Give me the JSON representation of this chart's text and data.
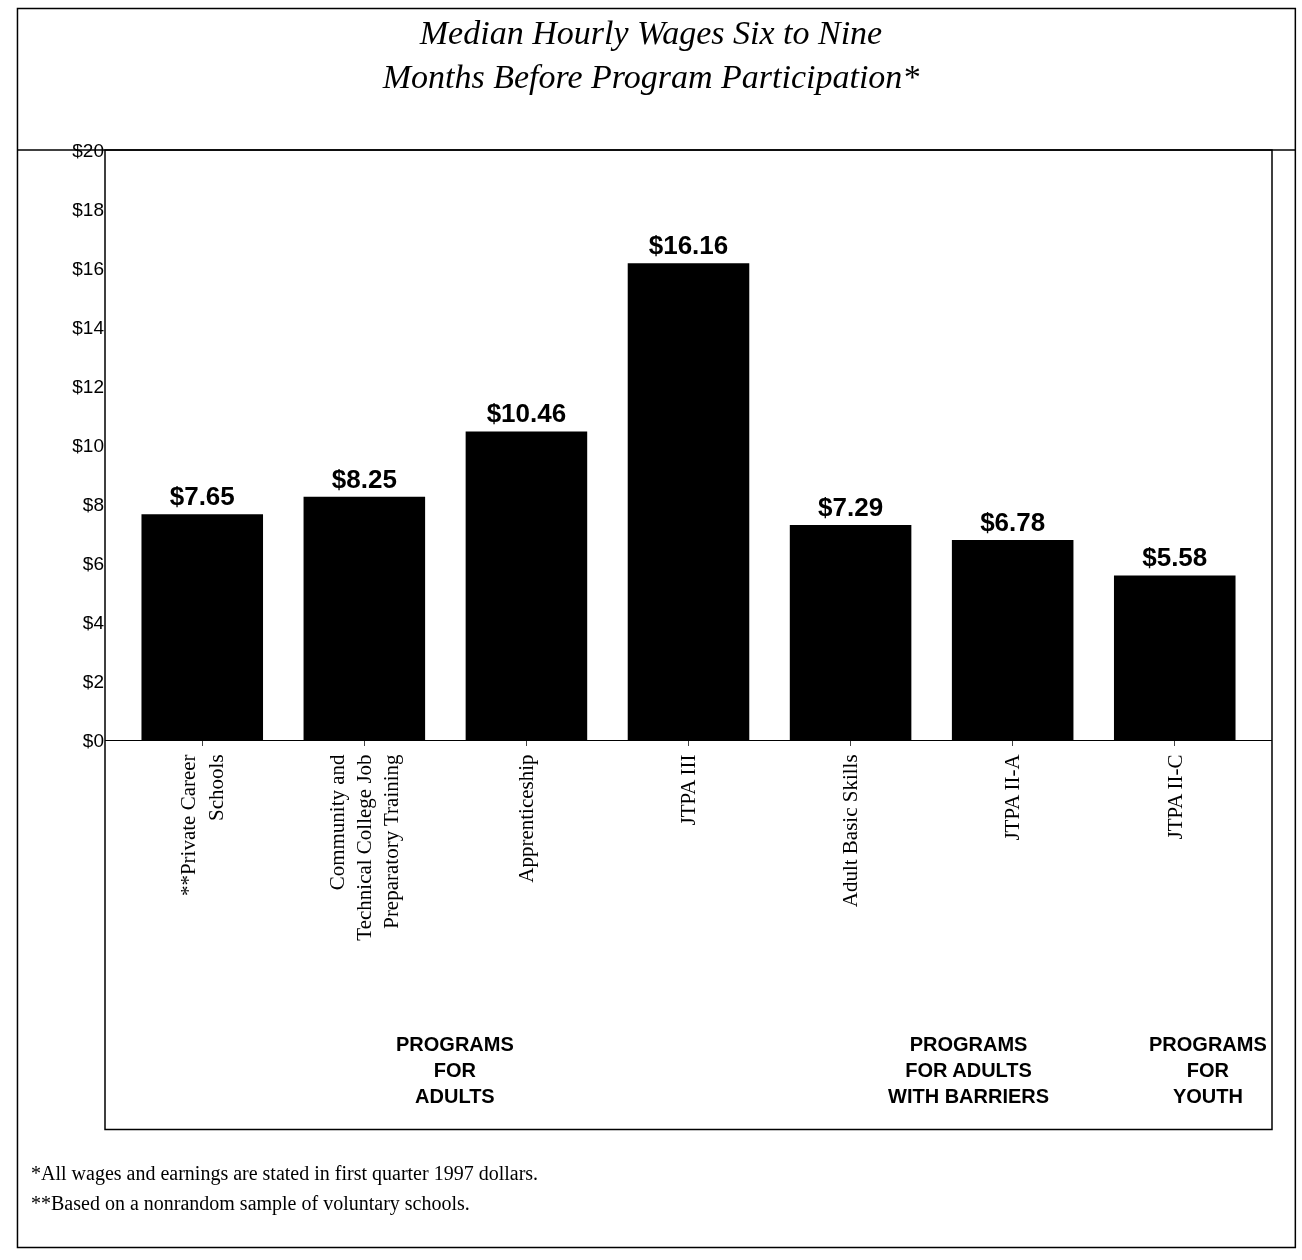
{
  "chart_data": {
    "type": "bar",
    "title": "Median Hourly Wages Six to Nine\nMonths Before Program Participation*",
    "categories": [
      "**Private Career Schools",
      "Community and Technical College Job Preparatory Training",
      "Apprenticeship",
      "JTPA III",
      "Adult Basic Skills",
      "JTPA II-A",
      "JTPA II-C"
    ],
    "values": [
      7.65,
      8.25,
      10.46,
      16.16,
      7.29,
      6.78,
      5.58
    ],
    "value_labels": [
      "$7.65",
      "$8.25",
      "$10.46",
      "$16.16",
      "$7.29",
      "$6.78",
      "$5.58"
    ],
    "color": "#000000",
    "ylim": [
      0,
      20
    ],
    "yticks": [
      {
        "value": 0,
        "label": "$0"
      },
      {
        "value": 2,
        "label": "$2"
      },
      {
        "value": 4,
        "label": "$4"
      },
      {
        "value": 6,
        "label": "$6"
      },
      {
        "value": 8,
        "label": "$8"
      },
      {
        "value": 10,
        "label": "$10"
      },
      {
        "value": 12,
        "label": "$12"
      },
      {
        "value": 14,
        "label": "$14"
      },
      {
        "value": 16,
        "label": "$16"
      },
      {
        "value": 18,
        "label": "$18"
      },
      {
        "value": 20,
        "label": "$20"
      }
    ],
    "annotations": [
      "PROGRAMS\nFOR\nADULTS",
      "PROGRAMS\nFOR ADULTS\nWITH BARRIERS",
      "PROGRAMS\nFOR\nYOUTH",
      "*All wages and earnings are stated in first quarter 1997 dollars.",
      "**Based on a nonrandom sample of voluntary schools."
    ]
  }
}
